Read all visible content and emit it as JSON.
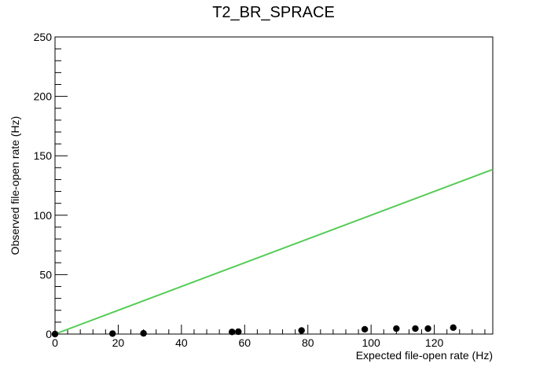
{
  "chart_data": {
    "type": "scatter",
    "title": "T2_BR_SPRACE",
    "xlabel": "Expected file-open rate (Hz)",
    "ylabel": "Observed file-open rate (Hz)",
    "xlim": [
      0,
      138.5
    ],
    "ylim": [
      0,
      250
    ],
    "xticks": [
      0,
      20,
      40,
      60,
      80,
      100,
      120
    ],
    "yticks": [
      0,
      50,
      100,
      150,
      200,
      250
    ],
    "grid": false,
    "series": [
      {
        "type": "scatter",
        "color": "#000000",
        "points": [
          {
            "x": 0,
            "y": 0
          },
          {
            "x": 18.2,
            "y": 0.4
          },
          {
            "x": 28,
            "y": 0.6
          },
          {
            "x": 56,
            "y": 1.8
          },
          {
            "x": 58,
            "y": 2.0
          },
          {
            "x": 78,
            "y": 3.0
          },
          {
            "x": 98,
            "y": 4.0
          },
          {
            "x": 108,
            "y": 4.6
          },
          {
            "x": 114,
            "y": 4.6
          },
          {
            "x": 118,
            "y": 4.6
          },
          {
            "x": 126,
            "y": 5.4
          }
        ]
      },
      {
        "type": "line",
        "color": "#55cc55",
        "x": [
          0,
          138.5
        ],
        "y": [
          0,
          138.5
        ]
      }
    ]
  }
}
